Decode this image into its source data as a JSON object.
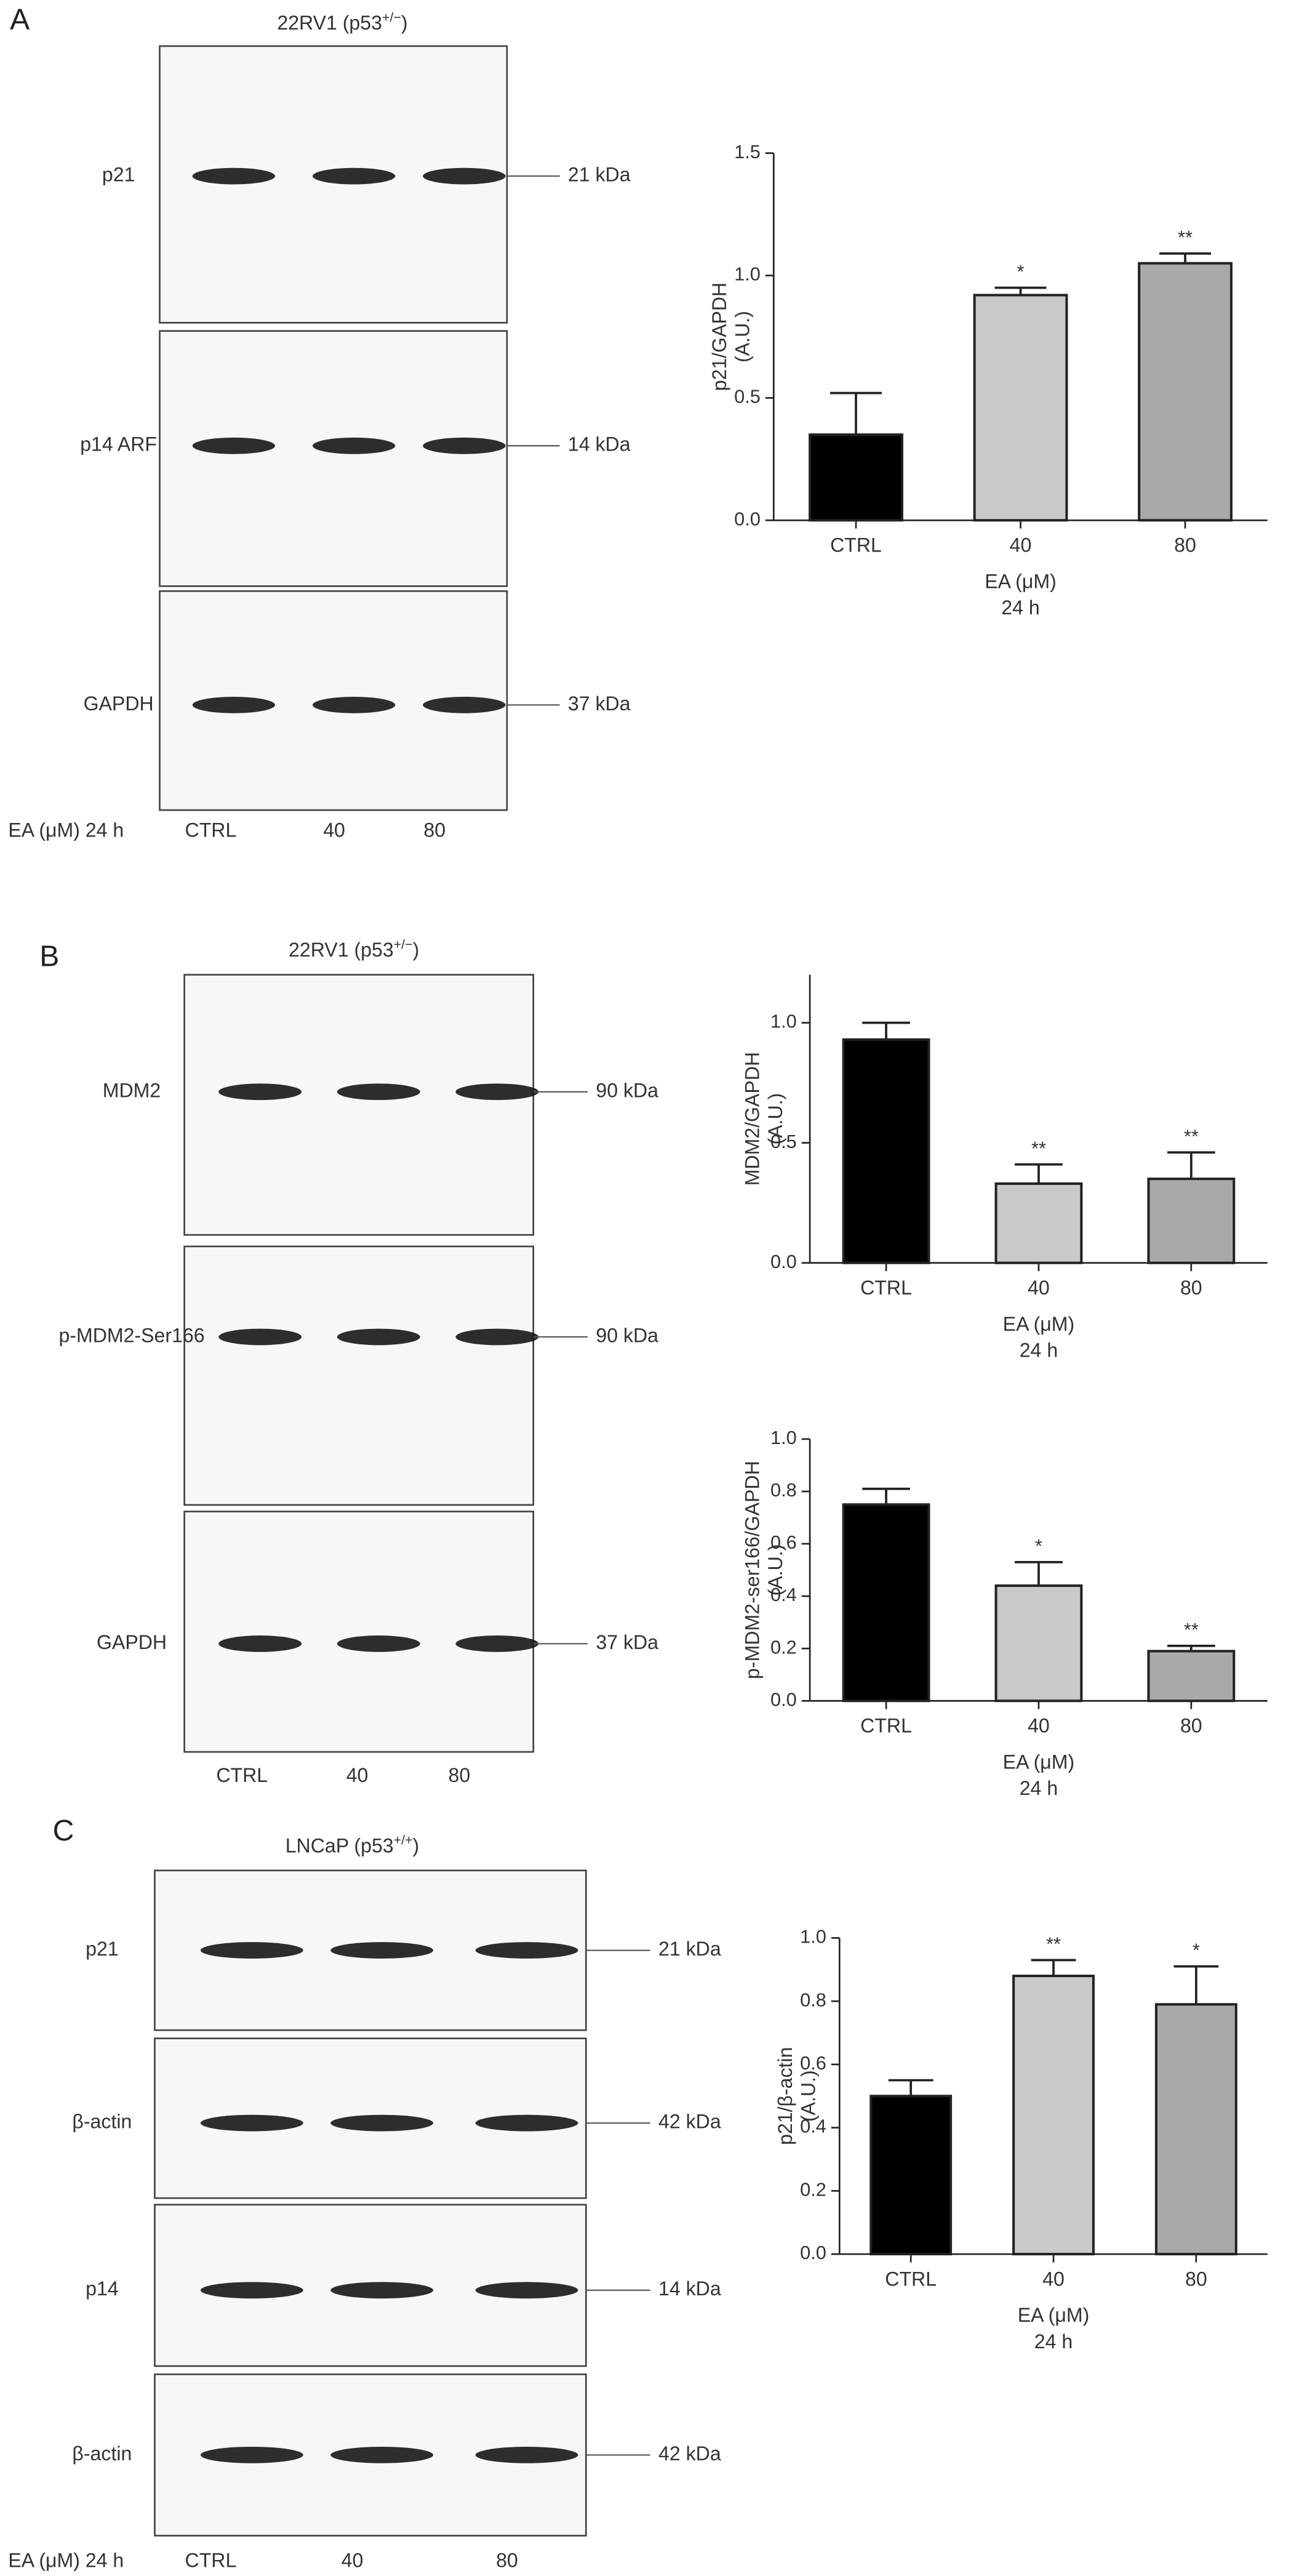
{
  "blots": [
    {
      "panel": "A",
      "title_parts": [
        "22RV1 (p53",
        "+/−",
        ")"
      ],
      "strips": [
        {
          "protein": "p21",
          "kda": "21 kDa"
        },
        {
          "protein": "p14 ARF",
          "kda": "14 kDa"
        },
        {
          "protein": "GAPDH",
          "kda": "37 kDa"
        }
      ],
      "treatment": "EA (μM) 24 h",
      "lanes": [
        "CTRL",
        "40",
        "80"
      ]
    },
    {
      "panel": "B",
      "title_parts": [
        "22RV1 (p53",
        "+/−",
        ")"
      ],
      "strips": [
        {
          "protein": "MDM2",
          "kda": "90 kDa"
        },
        {
          "protein": "p-MDM2-Ser166",
          "kda": "90 kDa"
        },
        {
          "protein": "GAPDH",
          "kda": "37 kDa"
        }
      ],
      "lanes": [
        "CTRL",
        "40",
        "80"
      ]
    },
    {
      "panel": "C",
      "title_parts": [
        "LNCaP (p53",
        "+/+",
        ")"
      ],
      "strips": [
        {
          "protein": "p21",
          "kda": "21 kDa"
        },
        {
          "protein": "β-actin",
          "kda": "42 kDa"
        },
        {
          "protein": "p14",
          "kda": "14 kDa"
        },
        {
          "protein": "β-actin",
          "kda": "42 kDa"
        }
      ],
      "treatment": "EA (μM) 24 h",
      "lanes": [
        "CTRL",
        "40",
        "80"
      ]
    }
  ],
  "chart_data": [
    {
      "type": "bar",
      "ylabel": "p21/GAPDH",
      "ylabel_unit": "(A.U.)",
      "xlabel": "EA (μM)",
      "xlabel_sub": "24 h",
      "categories": [
        "CTRL",
        "40",
        "80"
      ],
      "values": [
        0.35,
        0.92,
        1.05
      ],
      "errors": [
        0.17,
        0.03,
        0.04
      ],
      "annotations": [
        null,
        "*",
        "**"
      ],
      "colors": [
        "#000000",
        "#c9c9c9",
        "#a9a9a9"
      ],
      "ylim": [
        0,
        1.5
      ],
      "yticks": [
        {
          "value": 0,
          "label": "0.0"
        },
        0.5,
        {
          "value": 1,
          "label": "1.0"
        },
        1.5
      ]
    },
    {
      "type": "bar",
      "ylabel": "MDM2/GAPDH",
      "ylabel_unit": "(A.U.)",
      "xlabel": "EA (μM)",
      "xlabel_sub": "24 h",
      "categories": [
        "CTRL",
        "40",
        "80"
      ],
      "values": [
        0.93,
        0.33,
        0.35
      ],
      "errors": [
        0.07,
        0.08,
        0.11
      ],
      "annotations": [
        null,
        "**",
        "**"
      ],
      "colors": [
        "#000000",
        "#c9c9c9",
        "#a9a9a9"
      ],
      "ylim": [
        0,
        1.2
      ],
      "yticks": [
        {
          "value": 0,
          "label": "0.0"
        },
        0.5,
        {
          "value": 1,
          "label": "1.0"
        }
      ]
    },
    {
      "type": "bar",
      "ylabel": "p-MDM2-ser166/GAPDH",
      "ylabel_unit": "(A.U.)",
      "xlabel": "EA (μM)",
      "xlabel_sub": "24 h",
      "categories": [
        "CTRL",
        "40",
        "80"
      ],
      "values": [
        0.75,
        0.44,
        0.19
      ],
      "errors": [
        0.06,
        0.09,
        0.02
      ],
      "annotations": [
        null,
        "*",
        "**"
      ],
      "colors": [
        "#000000",
        "#c9c9c9",
        "#a9a9a9"
      ],
      "ylim": [
        0,
        1
      ],
      "yticks": [
        {
          "value": 0,
          "label": "0.0"
        },
        0.2,
        0.4,
        0.6,
        0.8,
        {
          "value": 1,
          "label": "1.0"
        }
      ]
    },
    {
      "type": "bar",
      "ylabel": "p21/β-actin",
      "ylabel_unit": "(A.U.)",
      "xlabel": "EA (μM)",
      "xlabel_sub": "24 h",
      "categories": [
        "CTRL",
        "40",
        "80"
      ],
      "values": [
        0.5,
        0.88,
        0.79
      ],
      "errors": [
        0.05,
        0.05,
        0.12
      ],
      "annotations": [
        null,
        "**",
        "*"
      ],
      "colors": [
        "#000000",
        "#c9c9c9",
        "#a9a9a9"
      ],
      "ylim": [
        0,
        1
      ],
      "yticks": [
        {
          "value": 0,
          "label": "0.0"
        },
        0.2,
        0.4,
        0.6,
        0.8,
        {
          "value": 1,
          "label": "1.0"
        }
      ]
    }
  ]
}
